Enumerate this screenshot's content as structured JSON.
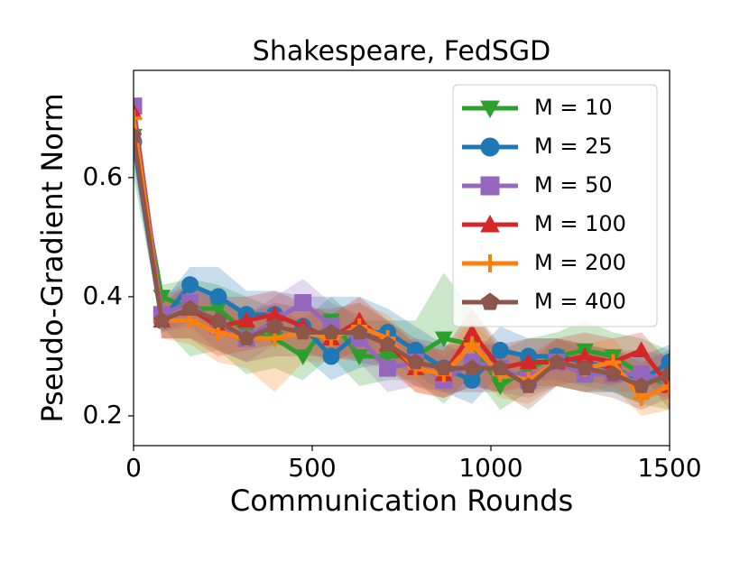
{
  "chart_data": {
    "type": "line",
    "title": "Shakespeare, FedSGD",
    "xlabel": "Communication Rounds",
    "ylabel": "Pseudo-Gradient Norm",
    "x": [
      0,
      79,
      158,
      237,
      316,
      395,
      474,
      553,
      632,
      711,
      789,
      868,
      947,
      1026,
      1105,
      1184,
      1263,
      1342,
      1421,
      1500
    ],
    "xlim": [
      0,
      1500
    ],
    "ylim": [
      0.15,
      0.78
    ],
    "xticks": [
      0,
      500,
      1000,
      1500
    ],
    "yticks": [
      0.2,
      0.4,
      0.6
    ],
    "legend": "upper right",
    "series": [
      {
        "name": "M = 10",
        "color": "#2ca02c",
        "marker": "triangle-down",
        "values": [
          0.67,
          0.4,
          0.38,
          0.38,
          0.34,
          0.33,
          0.3,
          0.36,
          0.3,
          0.3,
          0.3,
          0.33,
          0.32,
          0.25,
          0.28,
          0.3,
          0.31,
          0.3,
          0.27,
          0.25
        ],
        "lower": [
          0.6,
          0.35,
          0.3,
          0.31,
          0.27,
          0.28,
          0.26,
          0.3,
          0.25,
          0.26,
          0.26,
          0.22,
          0.27,
          0.21,
          0.24,
          0.25,
          0.24,
          0.24,
          0.22,
          0.21
        ],
        "upper": [
          0.7,
          0.42,
          0.43,
          0.42,
          0.4,
          0.38,
          0.36,
          0.4,
          0.36,
          0.36,
          0.36,
          0.44,
          0.38,
          0.31,
          0.33,
          0.34,
          0.36,
          0.34,
          0.33,
          0.31
        ]
      },
      {
        "name": "M = 25",
        "color": "#1f77b4",
        "marker": "circle",
        "values": [
          0.66,
          0.36,
          0.42,
          0.4,
          0.37,
          0.37,
          0.35,
          0.3,
          0.34,
          0.34,
          0.31,
          0.28,
          0.26,
          0.31,
          0.3,
          0.3,
          0.29,
          0.28,
          0.26,
          0.29
        ],
        "lower": [
          0.62,
          0.34,
          0.36,
          0.34,
          0.32,
          0.33,
          0.3,
          0.26,
          0.28,
          0.29,
          0.27,
          0.24,
          0.22,
          0.27,
          0.26,
          0.26,
          0.25,
          0.24,
          0.22,
          0.25
        ],
        "upper": [
          0.7,
          0.39,
          0.45,
          0.45,
          0.41,
          0.41,
          0.4,
          0.4,
          0.4,
          0.38,
          0.35,
          0.32,
          0.3,
          0.35,
          0.33,
          0.33,
          0.32,
          0.31,
          0.3,
          0.32
        ]
      },
      {
        "name": "M = 50",
        "color": "#9467bd",
        "marker": "square",
        "values": [
          0.72,
          0.37,
          0.39,
          0.35,
          0.33,
          0.36,
          0.39,
          0.35,
          0.33,
          0.28,
          0.29,
          0.26,
          0.29,
          0.28,
          0.26,
          0.29,
          0.27,
          0.27,
          0.27,
          0.26
        ],
        "lower": [
          0.7,
          0.34,
          0.35,
          0.31,
          0.29,
          0.32,
          0.35,
          0.31,
          0.29,
          0.24,
          0.25,
          0.23,
          0.25,
          0.24,
          0.23,
          0.25,
          0.24,
          0.24,
          0.24,
          0.23
        ],
        "upper": [
          0.74,
          0.4,
          0.43,
          0.39,
          0.37,
          0.4,
          0.43,
          0.39,
          0.37,
          0.32,
          0.33,
          0.3,
          0.33,
          0.32,
          0.3,
          0.33,
          0.31,
          0.31,
          0.31,
          0.3
        ]
      },
      {
        "name": "M = 100",
        "color": "#d62728",
        "marker": "triangle-up",
        "values": [
          0.71,
          0.36,
          0.38,
          0.35,
          0.36,
          0.37,
          0.35,
          0.33,
          0.36,
          0.32,
          0.28,
          0.27,
          0.34,
          0.28,
          0.29,
          0.29,
          0.3,
          0.29,
          0.31,
          0.25
        ],
        "lower": [
          0.69,
          0.33,
          0.33,
          0.3,
          0.31,
          0.32,
          0.31,
          0.29,
          0.31,
          0.28,
          0.24,
          0.23,
          0.25,
          0.24,
          0.25,
          0.25,
          0.26,
          0.25,
          0.27,
          0.21
        ],
        "upper": [
          0.73,
          0.39,
          0.42,
          0.4,
          0.4,
          0.41,
          0.39,
          0.37,
          0.4,
          0.36,
          0.32,
          0.31,
          0.38,
          0.32,
          0.33,
          0.33,
          0.34,
          0.33,
          0.34,
          0.29
        ]
      },
      {
        "name": "M = 200",
        "color": "#ff7f0e",
        "marker": "plus",
        "values": [
          0.7,
          0.36,
          0.36,
          0.34,
          0.33,
          0.33,
          0.34,
          0.33,
          0.35,
          0.33,
          0.28,
          0.27,
          0.32,
          0.27,
          0.26,
          0.29,
          0.28,
          0.29,
          0.23,
          0.25
        ],
        "lower": [
          0.68,
          0.33,
          0.32,
          0.29,
          0.28,
          0.24,
          0.29,
          0.29,
          0.3,
          0.29,
          0.24,
          0.23,
          0.27,
          0.23,
          0.22,
          0.25,
          0.24,
          0.25,
          0.2,
          0.21
        ],
        "upper": [
          0.72,
          0.39,
          0.4,
          0.38,
          0.37,
          0.37,
          0.38,
          0.37,
          0.39,
          0.37,
          0.32,
          0.31,
          0.36,
          0.31,
          0.3,
          0.33,
          0.32,
          0.33,
          0.27,
          0.29
        ]
      },
      {
        "name": "M = 400",
        "color": "#8c564b",
        "marker": "pentagon",
        "values": [
          0.67,
          0.36,
          0.38,
          0.36,
          0.33,
          0.35,
          0.34,
          0.34,
          0.34,
          0.32,
          0.29,
          0.28,
          0.28,
          0.28,
          0.25,
          0.29,
          0.28,
          0.27,
          0.25,
          0.27
        ],
        "lower": [
          0.64,
          0.33,
          0.33,
          0.31,
          0.29,
          0.3,
          0.3,
          0.3,
          0.29,
          0.28,
          0.25,
          0.24,
          0.24,
          0.24,
          0.21,
          0.25,
          0.24,
          0.23,
          0.21,
          0.23
        ],
        "upper": [
          0.7,
          0.4,
          0.42,
          0.4,
          0.37,
          0.39,
          0.38,
          0.38,
          0.39,
          0.36,
          0.33,
          0.32,
          0.32,
          0.32,
          0.29,
          0.33,
          0.32,
          0.31,
          0.29,
          0.31
        ]
      }
    ]
  }
}
